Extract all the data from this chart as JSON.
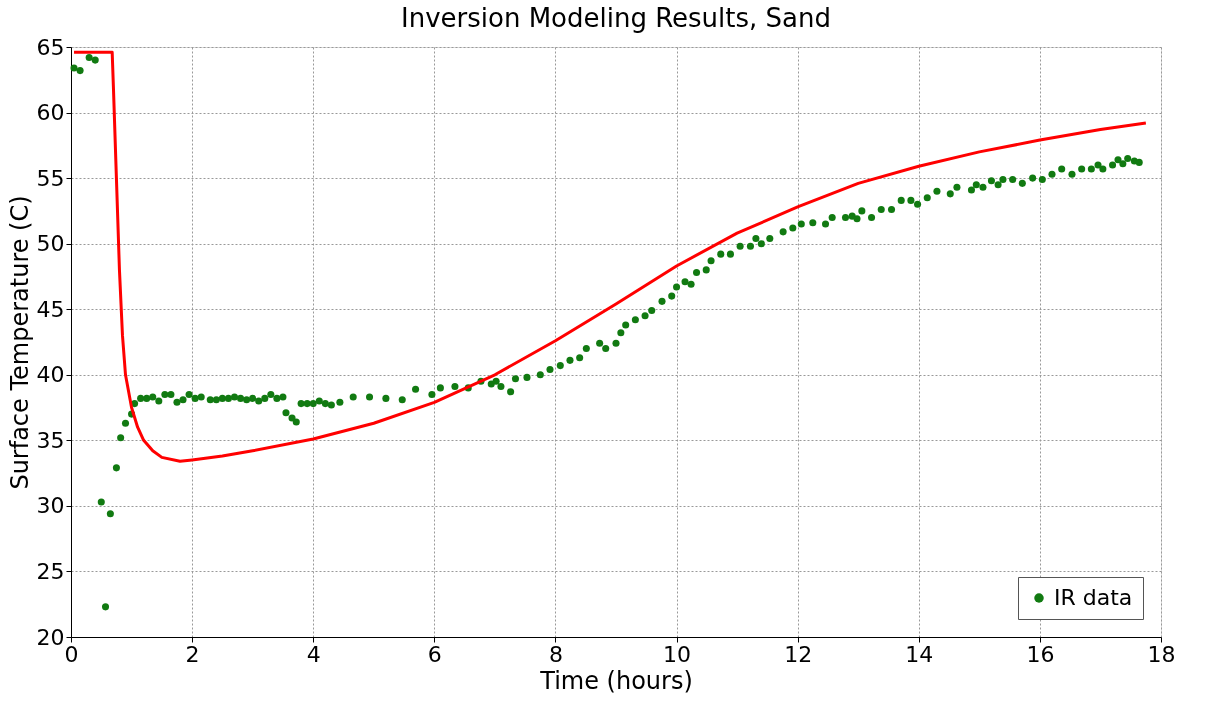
{
  "chart_data": {
    "type": "scatter",
    "title": "Inversion Modeling Results, Sand",
    "xlabel": "Time (hours)",
    "ylabel": "Surface Temperature (C)",
    "xlim": [
      0,
      18
    ],
    "xticks": [
      0,
      2,
      4,
      6,
      8,
      10,
      12,
      14,
      16,
      18
    ],
    "ylim": [
      20,
      65
    ],
    "yticks": [
      20,
      25,
      30,
      35,
      40,
      45,
      50,
      55,
      60,
      65
    ],
    "grid": true,
    "legend": "bottom right",
    "series": [
      {
        "name": "IR data",
        "color": "#117a11",
        "marker": "circle",
        "x": [
          0.05,
          0.15,
          0.3,
          0.4,
          0.5,
          0.57,
          0.65,
          0.75,
          0.82,
          0.9,
          1.0,
          1.05,
          1.15,
          1.25,
          1.35,
          1.45,
          1.55,
          1.65,
          1.75,
          1.85,
          1.95,
          2.05,
          2.15,
          2.3,
          2.4,
          2.5,
          2.6,
          2.7,
          2.8,
          2.9,
          3.0,
          3.1,
          3.2,
          3.3,
          3.4,
          3.5,
          3.55,
          3.65,
          3.72,
          3.8,
          3.9,
          4.0,
          4.1,
          4.2,
          4.3,
          4.44,
          4.66,
          4.93,
          5.2,
          5.47,
          5.69,
          5.96,
          6.1,
          6.34,
          6.56,
          6.77,
          6.94,
          7.02,
          7.1,
          7.26,
          7.34,
          7.53,
          7.75,
          7.91,
          8.08,
          8.24,
          8.4,
          8.51,
          8.73,
          8.83,
          9.0,
          9.08,
          9.16,
          9.32,
          9.48,
          9.59,
          9.76,
          9.92,
          10.0,
          10.14,
          10.24,
          10.33,
          10.49,
          10.57,
          10.73,
          10.89,
          11.05,
          11.22,
          11.31,
          11.4,
          11.54,
          11.76,
          11.92,
          12.06,
          12.25,
          12.46,
          12.57,
          12.79,
          12.9,
          12.98,
          13.06,
          13.22,
          13.38,
          13.55,
          13.71,
          13.87,
          13.98,
          14.14,
          14.3,
          14.52,
          14.63,
          14.87,
          14.95,
          15.06,
          15.2,
          15.31,
          15.39,
          15.55,
          15.71,
          15.88,
          16.04,
          16.2,
          16.36,
          16.53,
          16.69,
          16.85,
          16.96,
          17.04,
          17.2,
          17.29,
          17.37,
          17.45,
          17.56,
          17.64
        ],
        "values": [
          63.4,
          63.2,
          64.2,
          64.0,
          30.3,
          22.3,
          29.4,
          32.9,
          35.2,
          36.3,
          37.0,
          37.8,
          38.2,
          38.2,
          38.3,
          38.0,
          38.5,
          38.5,
          37.9,
          38.1,
          38.5,
          38.2,
          38.3,
          38.1,
          38.1,
          38.2,
          38.2,
          38.3,
          38.2,
          38.1,
          38.2,
          38.0,
          38.2,
          38.5,
          38.2,
          38.3,
          37.1,
          36.7,
          36.4,
          37.8,
          37.8,
          37.8,
          38.0,
          37.8,
          37.7,
          37.9,
          38.3,
          38.3,
          38.2,
          38.1,
          38.9,
          38.5,
          39.0,
          39.1,
          39.0,
          39.5,
          39.3,
          39.5,
          39.1,
          38.7,
          39.7,
          39.8,
          40.0,
          40.4,
          40.7,
          41.1,
          41.3,
          42.0,
          42.4,
          42.0,
          42.4,
          43.2,
          43.8,
          44.2,
          44.5,
          44.9,
          45.6,
          46.0,
          46.7,
          47.1,
          46.9,
          47.8,
          48.0,
          48.7,
          49.2,
          49.2,
          49.8,
          49.8,
          50.4,
          50.0,
          50.4,
          50.9,
          51.2,
          51.5,
          51.6,
          51.5,
          52.0,
          52.0,
          52.1,
          51.9,
          52.5,
          52.0,
          52.6,
          52.6,
          53.3,
          53.3,
          53.0,
          53.5,
          54.0,
          53.8,
          54.3,
          54.1,
          54.5,
          54.3,
          54.8,
          54.5,
          54.9,
          54.9,
          54.6,
          55.0,
          54.9,
          55.3,
          55.7,
          55.3,
          55.7,
          55.7,
          56.0,
          55.7,
          56.0,
          56.4,
          56.1,
          56.5,
          56.3,
          56.2
        ]
      },
      {
        "type": "line",
        "color": "#ff0000",
        "line_style": "solid",
        "x": [
          0.05,
          0.68,
          0.7,
          0.75,
          0.8,
          0.85,
          0.9,
          1.0,
          1.1,
          1.2,
          1.35,
          1.5,
          1.8,
          2.0,
          2.5,
          3.0,
          4.0,
          5.0,
          6.0,
          7.0,
          8.0,
          9.0,
          10.0,
          11.0,
          12.0,
          13.0,
          14.0,
          15.0,
          16.0,
          17.0,
          17.75
        ],
        "values": [
          64.6,
          64.6,
          62.0,
          55.0,
          48.0,
          43.0,
          40.0,
          37.5,
          36.0,
          35.0,
          34.2,
          33.7,
          33.4,
          33.5,
          33.8,
          34.2,
          35.1,
          36.3,
          37.9,
          40.0,
          42.6,
          45.4,
          48.3,
          50.8,
          52.8,
          54.6,
          55.9,
          57.0,
          57.9,
          58.7,
          59.2
        ]
      }
    ]
  }
}
